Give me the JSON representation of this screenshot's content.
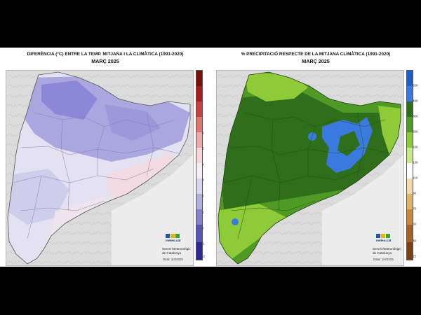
{
  "left_map": {
    "title": "DIFERÈNCIA (°C) ENTRE LA TEMP. MITJANA I LA CLIMÀTICA (1991-2020)",
    "subtitle": "MARÇ 2025",
    "scale_labels": [
      "6",
      "5",
      "4",
      "3",
      "2",
      "1",
      "0",
      "-1",
      "-2",
      "-3",
      "-4",
      "-5"
    ],
    "colors": {
      "cold": "#8c88d8",
      "mild_cold": "#cfcdec",
      "neutral": "#efe9f4",
      "warm": "#f4dbe3",
      "sea": "#ececec",
      "land_bg": "#dcdcdc"
    }
  },
  "right_map": {
    "title": "% PRECIPITACIÓ RESPECTE DE LA MITJANA CLIMÀTICA (1991-2020)",
    "subtitle": "MARÇ 2025",
    "scale_labels": [
      "500",
      "400",
      "300",
      "200",
      "160",
      "130",
      "110",
      "90",
      "70",
      "50",
      "30",
      "15"
    ],
    "colors": {
      "very_wet": "#2f6e1a",
      "wet": "#4f9a24",
      "moderate": "#8fca38",
      "blue": "#3a7ae0",
      "sea": "#ececec"
    }
  },
  "logo": {
    "name": "meteo.cat"
  },
  "credit": {
    "line1": "Servei Meteorològic",
    "line2": "de Catalunya"
  },
  "left_date": "Data: 1/4/2025",
  "right_date": "Data: 1/4/2025"
}
